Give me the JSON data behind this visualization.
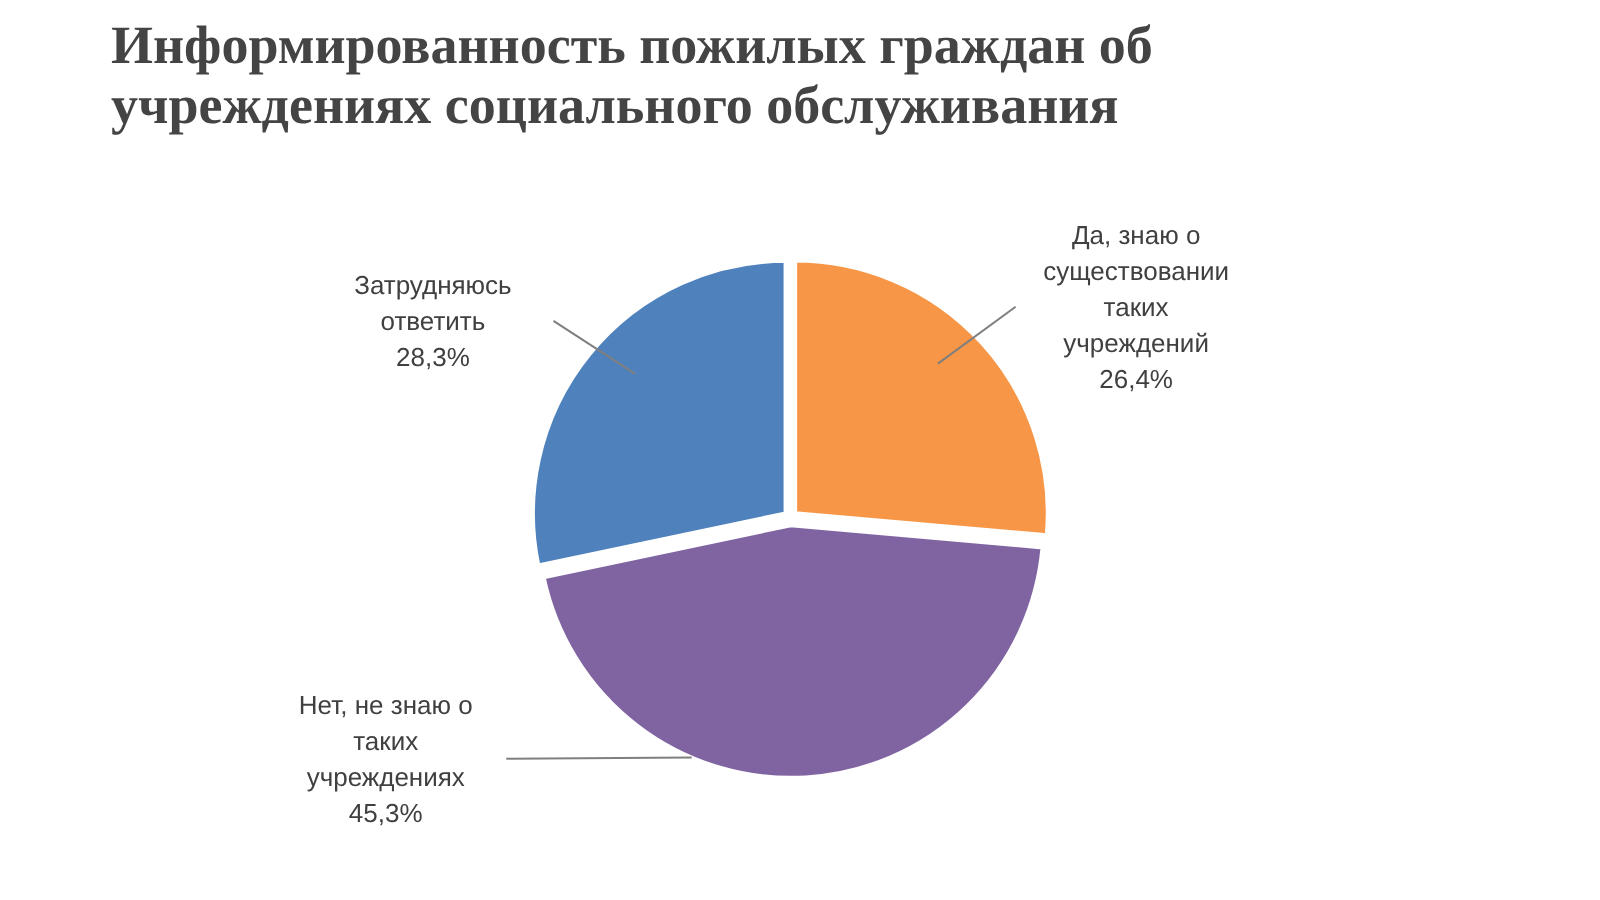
{
  "chart_data": {
    "type": "pie",
    "title": "Информированность пожилых граждан об учреждениях социального обслуживания",
    "categories": [
      "Да, знаю о существовании таких учреждений",
      "Нет, не знаю о таких учреждениях",
      "Затрудняюсь ответить"
    ],
    "values": [
      26.4,
      45.3,
      28.3
    ],
    "colors": [
      "#f79646",
      "#8064a2",
      "#4f81bd"
    ],
    "value_labels": [
      "26,4%",
      "45,3%",
      "28,3%"
    ]
  }
}
